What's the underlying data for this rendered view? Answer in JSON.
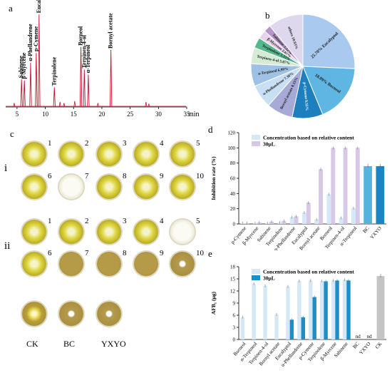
{
  "panels": {
    "a": "a",
    "b": "b",
    "c": "c",
    "d": "d",
    "e": "e"
  },
  "chart_data": [
    {
      "type": "line",
      "panel": "a",
      "xlabel": "min",
      "xticks": [
        "5",
        "10",
        "15",
        "20",
        "25",
        "30",
        "35"
      ],
      "xlim": [
        3,
        35
      ],
      "peaks": [
        {
          "label": "Sabinene",
          "x": 5.8,
          "h": 0.28
        },
        {
          "label": "β-Myrcene",
          "x": 6.3,
          "h": 0.27
        },
        {
          "label": "α-Phellandrene",
          "x": 7.4,
          "h": 0.45
        },
        {
          "label": "p-Cymene",
          "x": 8.4,
          "h": 0.55
        },
        {
          "label": "Eucalyptol",
          "x": 8.9,
          "h": 0.94
        },
        {
          "label": "Terpinolene",
          "x": 11.6,
          "h": 0.2
        },
        {
          "label": "Borneol",
          "x": 16.3,
          "h": 0.61
        },
        {
          "label": "Terpinen-4-ol",
          "x": 16.9,
          "h": 0.38
        },
        {
          "label": "α-Terpineol",
          "x": 17.6,
          "h": 0.33
        },
        {
          "label": "Bornyl acetate",
          "x": 21.6,
          "h": 0.58
        }
      ]
    },
    {
      "type": "pie",
      "panel": "b",
      "slices": [
        {
          "label": "25.70% Eucalyptol",
          "value": 25.7,
          "color": "#a9c9ef"
        },
        {
          "label": "18.09% Borneol",
          "value": 18.09,
          "color": "#5fb6e3"
        },
        {
          "label": "p-Cymene 9.55%",
          "value": 9.55,
          "color": "#1e7fbf"
        },
        {
          "label": "Bornyl acetate 8.15%",
          "value": 8.15,
          "color": "#a7a9d6"
        },
        {
          "label": "α-Phellandrene 7.30%",
          "value": 7.3,
          "color": "#c9e0f4"
        },
        {
          "label": "α-Terpineol 6.99%",
          "value": 6.99,
          "color": "#9fc1e6"
        },
        {
          "label": "Terpinen-4-ol 5.07%",
          "value": 5.07,
          "color": "#d4ecd5"
        },
        {
          "label": "Terpinolene 3.33%",
          "value": 3.33,
          "color": "#54b88d"
        },
        {
          "label": "β-Myrcene 2.67%",
          "value": 2.67,
          "color": "#e8d2ec"
        },
        {
          "label": "Sabinene 2.22%",
          "value": 2.22,
          "color": "#b594c8"
        },
        {
          "label": "others 10.93%",
          "value": 10.93,
          "color": "#ddd8ee"
        }
      ]
    },
    {
      "type": "bar",
      "panel": "d",
      "ylabel": "Inhibition rate (%)",
      "ylim": [
        0,
        120
      ],
      "yticks": [
        0,
        20,
        40,
        60,
        80,
        100,
        120
      ],
      "categories": [
        "p-Cymene",
        "β-Myrcene",
        "Sabinene",
        "Terpinolene",
        "α-Phellandrene",
        "Eucalyptol",
        "Bornyl acetate",
        "Borneol",
        "Terpinen-4-ol",
        "α-Terpineol",
        "BC",
        "YXYO"
      ],
      "series": [
        {
          "name": "Concentration based on relative content",
          "color": "#d4e8f8",
          "values": [
            1,
            1,
            1,
            2,
            9,
            15,
            6,
            39,
            8,
            21,
            null,
            null
          ]
        },
        {
          "name": "30μL",
          "color": "#d6c8e6",
          "values": [
            1,
            2,
            3,
            4,
            10,
            28,
            72,
            100,
            100,
            100,
            null,
            null
          ]
        }
      ],
      "single": {
        "BC": {
          "value": 76,
          "color": "#56b3df"
        },
        "YXYO": {
          "value": 76,
          "color": "#1b84c2"
        }
      }
    },
    {
      "type": "bar",
      "panel": "e",
      "ylabel": "AFB₁ (μg)",
      "ylim": [
        0,
        18
      ],
      "yticks": [
        0,
        3,
        6,
        9,
        12,
        15,
        18
      ],
      "categories": [
        "Borneol",
        "α-Terpineol",
        "Terpinen-4-ol",
        "Bornyl acetate",
        "Eucalyptol",
        "α-Phellandrene",
        "p-Cymene",
        "Terpinolene",
        "β-Myrcene",
        "Sabinene",
        "BC",
        "YXYO",
        "CK"
      ],
      "series": [
        {
          "name": "Concentration based on relative content",
          "color": "#d4e8f8",
          "values": [
            5.5,
            13.8,
            13.3,
            6.2,
            13.1,
            14.5,
            14.6,
            14.5,
            14.6,
            14.8,
            null,
            null,
            null
          ]
        },
        {
          "name": "30μL",
          "color": "#1b8fc9",
          "values": [
            null,
            null,
            null,
            null,
            4.9,
            5.5,
            10.5,
            14.4,
            14.6,
            14.6,
            null,
            null,
            null
          ]
        }
      ],
      "single": {
        "CK": {
          "value": 15.7,
          "color": "#c4c4c4"
        }
      },
      "nd_labels": {
        "BC": "nd",
        "YXYO": "nd"
      }
    }
  ],
  "panel_c": {
    "row_labels": [
      "i",
      "ii"
    ],
    "numbers": [
      "1",
      "2",
      "3",
      "4",
      "5",
      "6",
      "7",
      "8",
      "9",
      "10"
    ],
    "bottom_labels": [
      "CK",
      "BC",
      "YXYO"
    ]
  }
}
